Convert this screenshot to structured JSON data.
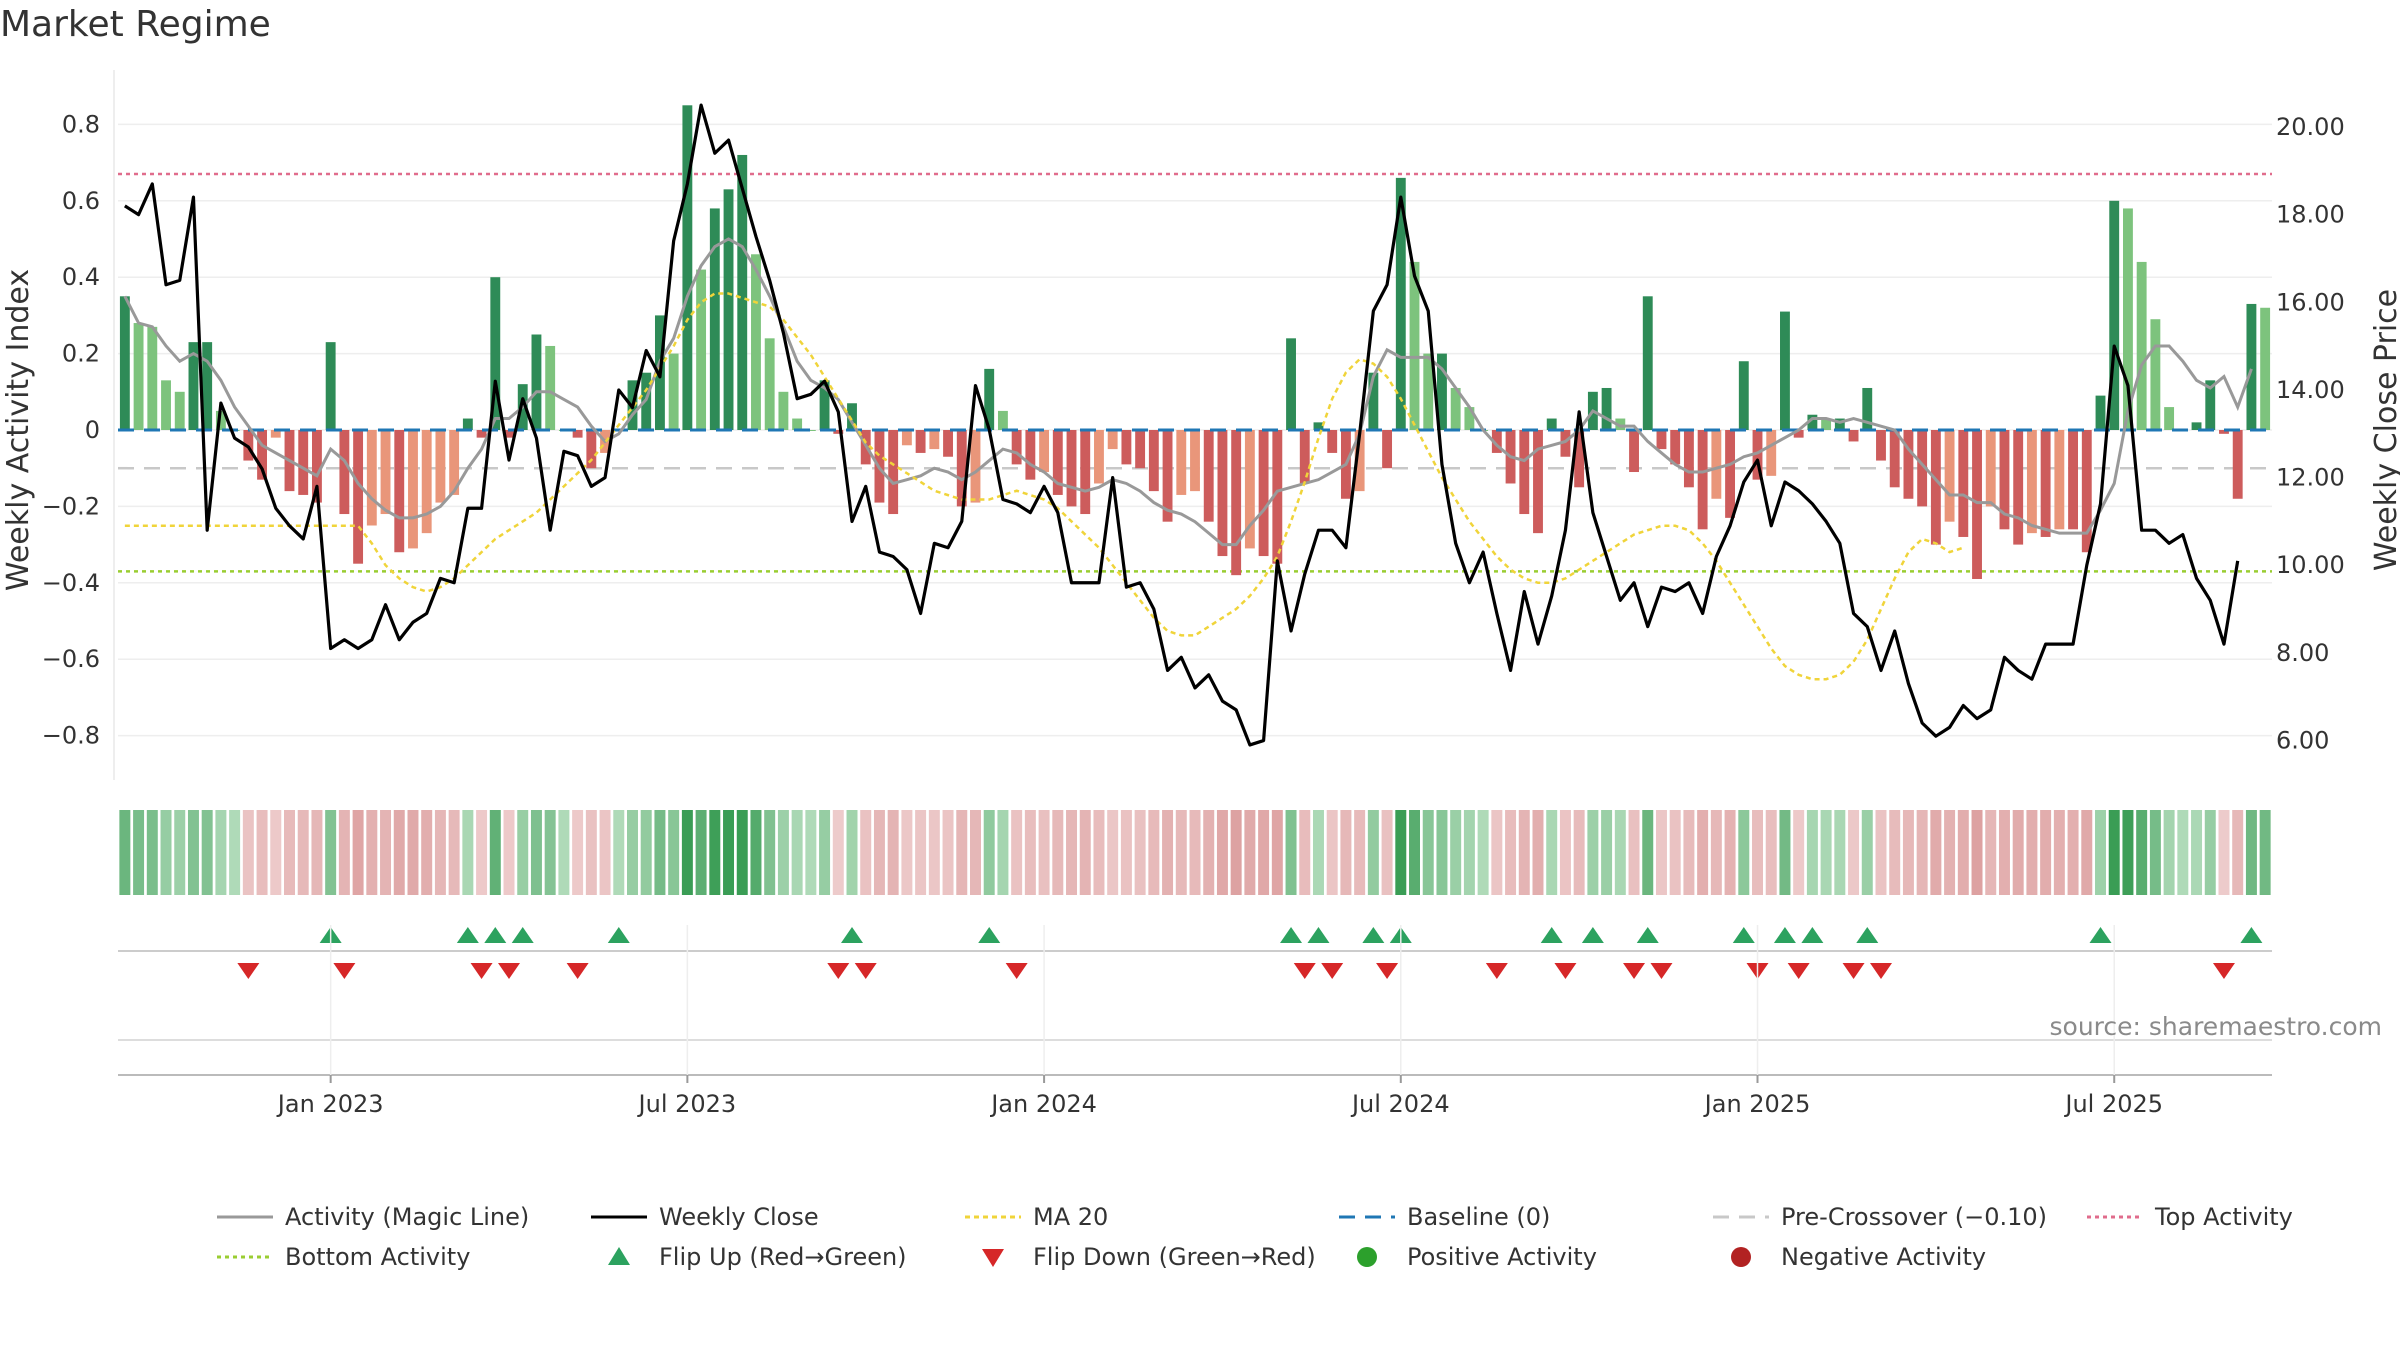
{
  "title": "Market Regime",
  "source": "source: sharemaestro.com",
  "colors": {
    "pos_dark": "#2e8b57",
    "pos_light": "#7dc37d",
    "neg_dark": "#cd5c5c",
    "neg_light": "#e9967a",
    "close": "#000000",
    "magic": "#999999",
    "ma20": "#f0d43a",
    "baseline": "#1f77b4",
    "pre": "#c8c8c8",
    "top": "#e06c8c",
    "bottom": "#9acd32",
    "flip_up": "#2ca25f",
    "flip_down": "#d62728",
    "pos_marker": "#2ca02c",
    "neg_marker": "#b22222"
  },
  "chart_data": {
    "type": "bar+line",
    "title": "Market Regime",
    "ylabel_left": "Weekly Activity Index",
    "ylabel_right": "Weekly Close Price",
    "ylim_left": [
      -0.92,
      0.92
    ],
    "ylim_right": [
      5.1,
      21.3
    ],
    "yticks_left": [
      "0.8",
      "0.6",
      "0.4",
      "0.2",
      "0",
      "−0.2",
      "−0.4",
      "−0.6",
      "−0.8"
    ],
    "yticks_right": [
      "20.00",
      "18.00",
      "16.00",
      "14.00",
      "12.00",
      "10.00",
      "8.00",
      "6.00"
    ],
    "x_tick_labels": [
      "Jan 2023",
      "Jul 2023",
      "Jan 2024",
      "Jul 2024",
      "Jan 2025",
      "Jul 2025"
    ],
    "x_tick_weeks": [
      15,
      41,
      67,
      93,
      119,
      145
    ],
    "levels": {
      "top_activity": 0.67,
      "bottom_activity": -0.37,
      "pre_crossover": -0.1,
      "baseline": 0
    },
    "activity": [
      0.35,
      0.28,
      0.27,
      0.13,
      0.1,
      0.23,
      0.23,
      0.05,
      0.0,
      -0.08,
      -0.13,
      -0.02,
      -0.16,
      -0.17,
      -0.19,
      0.23,
      -0.22,
      -0.35,
      -0.25,
      -0.22,
      -0.32,
      -0.31,
      -0.27,
      -0.19,
      -0.17,
      0.03,
      -0.02,
      0.4,
      -0.02,
      0.12,
      0.25,
      0.22,
      0.0,
      -0.02,
      -0.1,
      -0.06,
      0.0,
      0.13,
      0.15,
      0.3,
      0.2,
      0.85,
      0.42,
      0.58,
      0.63,
      0.72,
      0.46,
      0.24,
      0.1,
      0.03,
      0.0,
      0.13,
      -0.01,
      0.07,
      -0.09,
      -0.19,
      -0.22,
      -0.04,
      -0.06,
      -0.05,
      -0.07,
      -0.2,
      -0.19,
      0.16,
      0.05,
      -0.09,
      -0.13,
      -0.11,
      -0.17,
      -0.2,
      -0.22,
      -0.14,
      -0.05,
      -0.09,
      -0.1,
      -0.16,
      -0.24,
      -0.17,
      -0.16,
      -0.24,
      -0.33,
      -0.38,
      -0.31,
      -0.33,
      -0.35,
      0.24,
      -0.14,
      0.02,
      -0.06,
      -0.18,
      -0.16,
      0.15,
      -0.1,
      0.66,
      0.44,
      0.2,
      0.2,
      0.11,
      0.06,
      0.0,
      -0.06,
      -0.14,
      -0.22,
      -0.27,
      0.03,
      -0.07,
      -0.15,
      0.1,
      0.11,
      0.03,
      -0.11,
      0.35,
      -0.05,
      -0.09,
      -0.15,
      -0.26,
      -0.18,
      -0.23,
      0.18,
      -0.13,
      -0.12,
      0.31,
      -0.02,
      0.04,
      0.03,
      0.03,
      -0.03,
      0.11,
      -0.08,
      -0.15,
      -0.18,
      -0.2,
      -0.3,
      -0.24,
      -0.28,
      -0.39,
      -0.2,
      -0.26,
      -0.3,
      -0.27,
      -0.28,
      -0.26,
      -0.26,
      -0.32,
      0.09,
      0.6,
      0.58,
      0.44,
      0.29,
      0.06,
      0.0,
      0.02,
      0.13,
      -0.01,
      -0.18,
      0.33,
      0.32
    ],
    "magic_line": [
      0.35,
      0.28,
      0.27,
      0.22,
      0.18,
      0.2,
      0.18,
      0.13,
      0.06,
      0.01,
      -0.04,
      -0.06,
      -0.08,
      -0.1,
      -0.12,
      -0.05,
      -0.08,
      -0.14,
      -0.18,
      -0.21,
      -0.23,
      -0.23,
      -0.22,
      -0.2,
      -0.16,
      -0.1,
      -0.05,
      0.03,
      0.03,
      0.06,
      0.1,
      0.1,
      0.08,
      0.06,
      0.01,
      -0.03,
      -0.01,
      0.04,
      0.08,
      0.18,
      0.24,
      0.35,
      0.43,
      0.48,
      0.5,
      0.48,
      0.42,
      0.35,
      0.27,
      0.18,
      0.13,
      0.11,
      0.08,
      0.02,
      -0.04,
      -0.1,
      -0.14,
      -0.13,
      -0.12,
      -0.1,
      -0.11,
      -0.13,
      -0.11,
      -0.08,
      -0.05,
      -0.06,
      -0.09,
      -0.11,
      -0.14,
      -0.15,
      -0.16,
      -0.15,
      -0.13,
      -0.14,
      -0.16,
      -0.19,
      -0.21,
      -0.22,
      -0.24,
      -0.27,
      -0.3,
      -0.3,
      -0.25,
      -0.21,
      -0.16,
      -0.15,
      -0.14,
      -0.13,
      -0.11,
      -0.09,
      -0.01,
      0.14,
      0.21,
      0.19,
      0.19,
      0.19,
      0.16,
      0.11,
      0.06,
      0.0,
      -0.04,
      -0.07,
      -0.08,
      -0.05,
      -0.04,
      -0.03,
      0.0,
      0.05,
      0.03,
      0.01,
      0.01,
      -0.03,
      -0.06,
      -0.09,
      -0.11,
      -0.11,
      -0.1,
      -0.09,
      -0.07,
      -0.06,
      -0.04,
      -0.02,
      0.0,
      0.03,
      0.03,
      0.02,
      0.03,
      0.02,
      0.01,
      0.0,
      -0.05,
      -0.09,
      -0.13,
      -0.17,
      -0.17,
      -0.19,
      -0.19,
      -0.22,
      -0.23,
      -0.25,
      -0.26,
      -0.27,
      -0.27,
      -0.27,
      -0.21,
      -0.14,
      0.05,
      0.17,
      0.22,
      0.22,
      0.18,
      0.13,
      0.11,
      0.14,
      0.06,
      0.16
    ],
    "weekly_close": [
      18.2,
      18.0,
      18.7,
      16.4,
      16.5,
      18.4,
      10.8,
      13.7,
      12.9,
      12.7,
      12.2,
      11.3,
      10.9,
      10.6,
      11.8,
      8.1,
      8.3,
      8.1,
      8.3,
      9.1,
      8.3,
      8.7,
      8.9,
      9.7,
      9.6,
      11.3,
      11.3,
      14.2,
      12.4,
      13.8,
      12.9,
      10.8,
      12.6,
      12.5,
      11.8,
      12.0,
      14.0,
      13.6,
      14.9,
      14.3,
      17.4,
      18.7,
      20.5,
      19.4,
      19.7,
      18.6,
      17.5,
      16.5,
      15.3,
      13.8,
      13.9,
      14.2,
      13.5,
      11.0,
      11.8,
      10.3,
      10.2,
      9.9,
      8.9,
      10.5,
      10.4,
      11.0,
      14.1,
      13.1,
      11.5,
      11.4,
      11.2,
      11.8,
      11.2,
      9.6,
      9.6,
      9.6,
      12.0,
      9.5,
      9.6,
      9.0,
      7.6,
      7.9,
      7.2,
      7.5,
      6.9,
      6.7,
      5.9,
      6.0,
      10.1,
      8.5,
      9.8,
      10.8,
      10.8,
      10.4,
      13.0,
      15.8,
      16.4,
      18.4,
      16.6,
      15.8,
      12.3,
      10.5,
      9.6,
      10.3,
      8.9,
      7.6,
      9.4,
      8.2,
      9.3,
      10.8,
      13.5,
      11.2,
      10.2,
      9.2,
      9.6,
      8.6,
      9.5,
      9.4,
      9.6,
      8.9,
      10.2,
      10.9,
      11.9,
      12.4,
      10.9,
      11.9,
      11.7,
      11.4,
      11.0,
      10.5,
      8.9,
      8.6,
      7.6,
      8.5,
      7.3,
      6.4,
      6.1,
      6.3,
      6.8,
      6.5,
      6.7,
      7.9,
      7.6,
      7.4,
      8.2,
      8.2,
      8.2,
      10.0,
      11.4,
      15.0,
      14.1,
      10.8,
      10.8,
      10.5,
      10.7,
      9.7,
      9.2,
      8.2,
      10.1
    ],
    "ma20": [
      10.9,
      10.9,
      10.9,
      10.9,
      10.9,
      10.9,
      10.9,
      10.9,
      10.9,
      10.9,
      10.9,
      10.9,
      10.9,
      10.9,
      10.9,
      10.9,
      10.9,
      10.9,
      10.5,
      10.0,
      9.7,
      9.5,
      9.4,
      9.5,
      9.7,
      10.0,
      10.3,
      10.6,
      10.8,
      11.0,
      11.2,
      11.5,
      11.8,
      12.1,
      12.4,
      12.8,
      13.2,
      13.6,
      14.0,
      14.5,
      15.0,
      15.6,
      16.0,
      16.2,
      16.2,
      16.1,
      16.0,
      15.9,
      15.6,
      15.2,
      14.8,
      14.3,
      13.8,
      13.3,
      12.8,
      12.5,
      12.3,
      12.1,
      11.9,
      11.7,
      11.6,
      11.5,
      11.5,
      11.5,
      11.6,
      11.7,
      11.6,
      11.5,
      11.3,
      11.0,
      10.7,
      10.4,
      10.0,
      9.6,
      9.2,
      8.8,
      8.5,
      8.4,
      8.4,
      8.6,
      8.8,
      9.0,
      9.3,
      9.7,
      10.2,
      11.0,
      11.9,
      12.9,
      13.8,
      14.4,
      14.7,
      14.6,
      14.3,
      13.8,
      13.2,
      12.6,
      12.0,
      11.5,
      11.0,
      10.6,
      10.2,
      9.9,
      9.7,
      9.6,
      9.6,
      9.7,
      9.9,
      10.1,
      10.3,
      10.5,
      10.7,
      10.8,
      10.9,
      10.9,
      10.8,
      10.5,
      10.1,
      9.6,
      9.1,
      8.6,
      8.1,
      7.7,
      7.5,
      7.4,
      7.4,
      7.5,
      7.8,
      8.3,
      9.0,
      9.7,
      10.3,
      10.6,
      10.5,
      10.3,
      10.4
    ]
  },
  "legend": [
    {
      "id": "magic",
      "label": "Activity (Magic Line)"
    },
    {
      "id": "close",
      "label": "Weekly Close"
    },
    {
      "id": "ma20",
      "label": "MA 20"
    },
    {
      "id": "baseline",
      "label": "Baseline (0)"
    },
    {
      "id": "pre",
      "label": "Pre-Crossover (−0.10)"
    },
    {
      "id": "top",
      "label": "Top Activity"
    },
    {
      "id": "bottom",
      "label": "Bottom Activity"
    },
    {
      "id": "flipup",
      "label": "Flip Up (Red→Green)"
    },
    {
      "id": "flipdown",
      "label": "Flip Down (Green→Red)"
    },
    {
      "id": "posact",
      "label": "Positive Activity"
    },
    {
      "id": "negact",
      "label": "Negative Activity"
    }
  ]
}
